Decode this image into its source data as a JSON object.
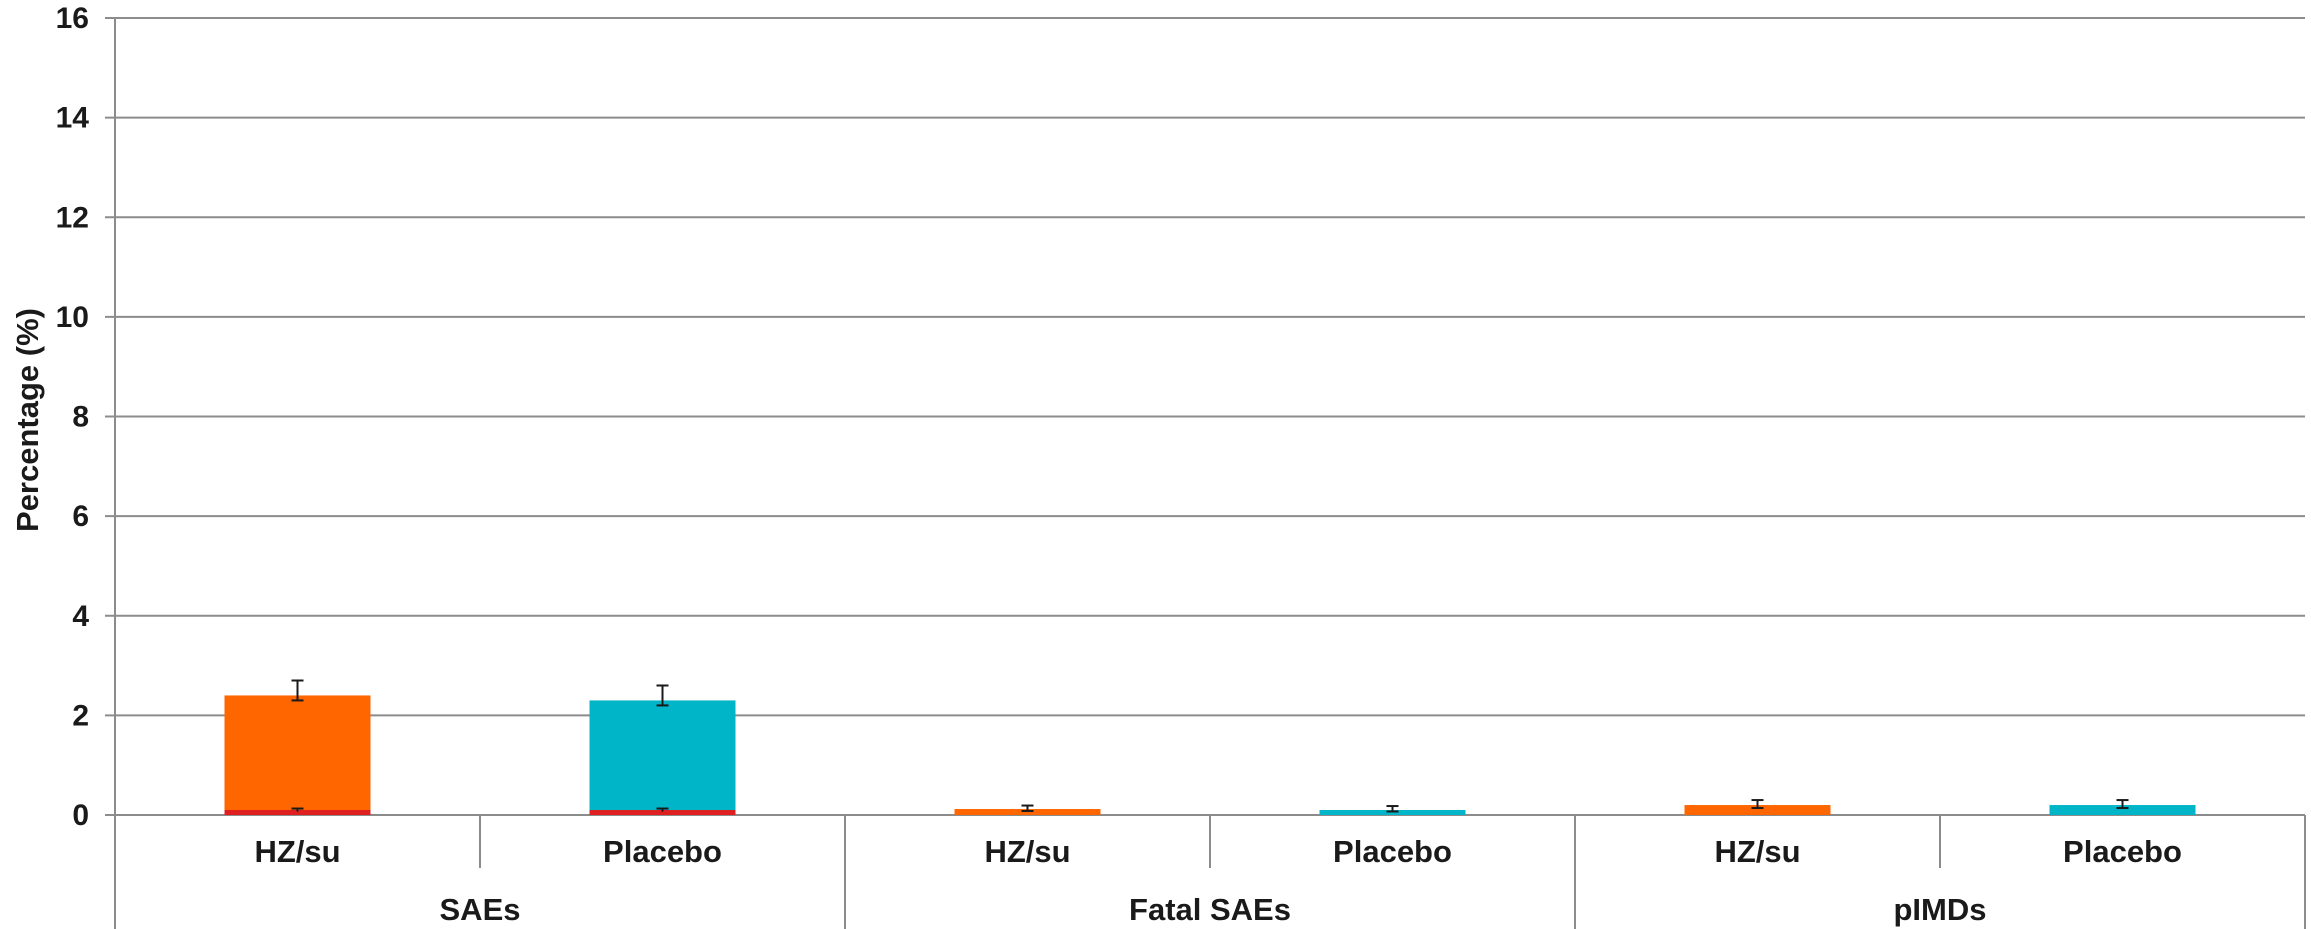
{
  "chart_data": {
    "type": "bar",
    "title": "",
    "ylabel": "Percentage (%)",
    "xlabel": "",
    "ylim": [
      0,
      16
    ],
    "yticks": [
      "0",
      "2",
      "4",
      "6",
      "8",
      "10",
      "12",
      "14",
      "16"
    ],
    "grid": true,
    "legend": "none",
    "groups": [
      {
        "label": "SAEs",
        "bars": [
          {
            "label": "HZ/su",
            "value": 2.4,
            "inner_value": 0.1,
            "error": [
              2.3,
              2.7
            ],
            "color": "#ff6600"
          },
          {
            "label": "Placebo",
            "value": 2.3,
            "inner_value": 0.1,
            "error": [
              2.2,
              2.6
            ],
            "color": "#00b5c8"
          }
        ]
      },
      {
        "label": "Fatal SAEs",
        "bars": [
          {
            "label": "HZ/su",
            "value": 0.12,
            "inner_value": 0,
            "error": [
              0.08,
              0.19
            ],
            "color": "#ff6600"
          },
          {
            "label": "Placebo",
            "value": 0.1,
            "inner_value": 0,
            "error": [
              0.07,
              0.18
            ],
            "color": "#00b5c8"
          }
        ]
      },
      {
        "label": "pIMDs",
        "bars": [
          {
            "label": "HZ/su",
            "value": 0.2,
            "inner_value": 0,
            "error": [
              0.14,
              0.3
            ],
            "color": "#ff6600"
          },
          {
            "label": "Placebo",
            "value": 0.2,
            "inner_value": 0,
            "error": [
              0.14,
              0.3
            ],
            "color": "#00b5c8"
          }
        ]
      }
    ],
    "colors": {
      "grid": "#8c8c8c",
      "inner_segment": "#e02020",
      "error_bar": "#1a1a1a",
      "divider": "#8c8c8c"
    }
  }
}
